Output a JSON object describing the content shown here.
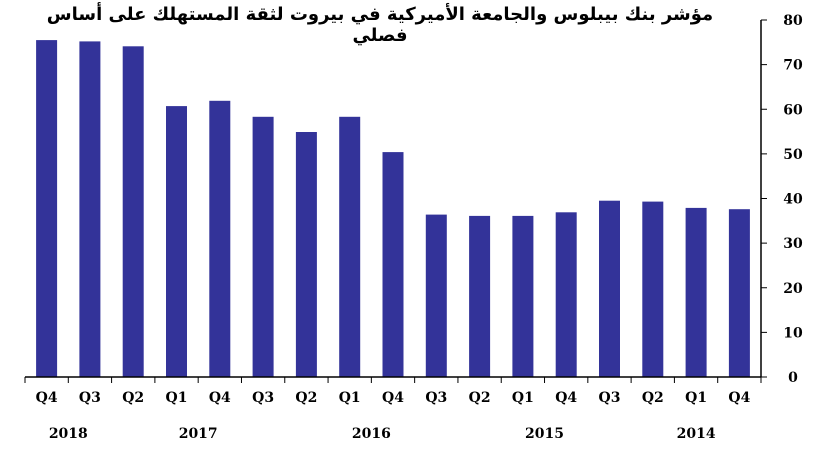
{
  "chart_data": {
    "type": "bar",
    "title": "مؤشر بنك بيبلوس والجامعة الأميركية في بيروت لثقة المستهلك على أساس فصلي",
    "categories": [
      "Q4",
      "Q3",
      "Q2",
      "Q1",
      "Q4",
      "Q3",
      "Q2",
      "Q1",
      "Q4",
      "Q3",
      "Q2",
      "Q1",
      "Q4",
      "Q3",
      "Q2",
      "Q1",
      "Q4"
    ],
    "values": [
      75.5,
      75.2,
      74.1,
      60.7,
      61.9,
      58.3,
      54.9,
      58.3,
      50.4,
      36.4,
      36.1,
      36.1,
      36.9,
      39.5,
      39.3,
      37.9,
      37.6
    ],
    "years": [
      {
        "label": "2018",
        "from": 0,
        "to": 1
      },
      {
        "label": "2017",
        "from": 2,
        "to": 5
      },
      {
        "label": "2016",
        "from": 6,
        "to": 9
      },
      {
        "label": "2015",
        "from": 10,
        "to": 13
      },
      {
        "label": "2014",
        "from": 14,
        "to": 16
      }
    ],
    "ylim": [
      0,
      80
    ],
    "yticks": [
      0,
      10,
      20,
      30,
      40,
      50,
      60,
      70,
      80
    ],
    "yaxis_side": "right",
    "bar_color": "#333399",
    "grid": false
  }
}
